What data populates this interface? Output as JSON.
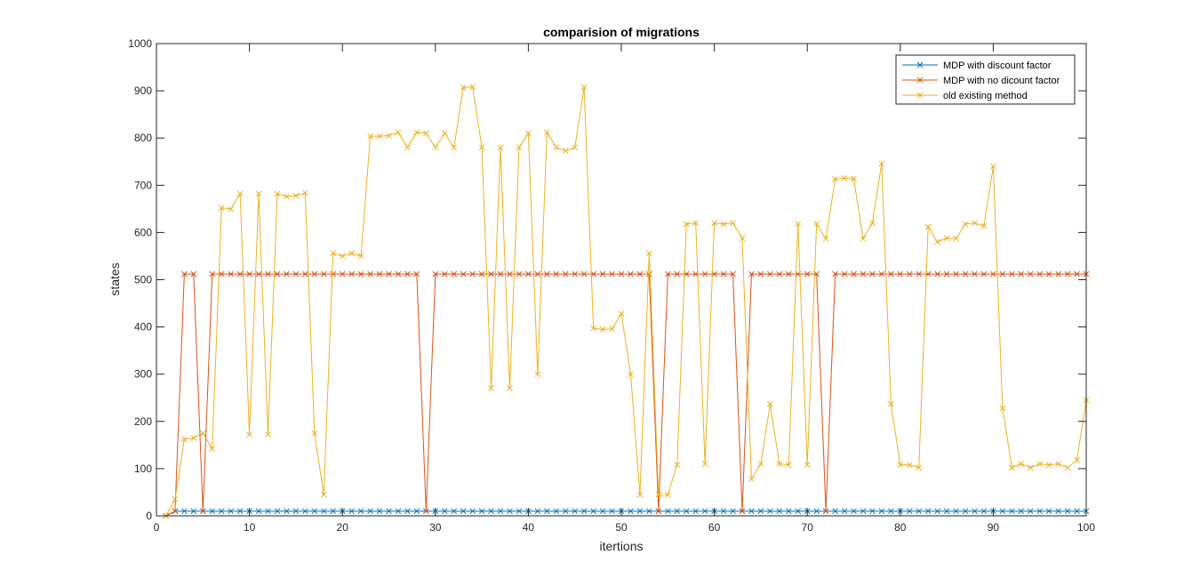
{
  "chart_data": {
    "type": "line",
    "title": "comparision of migrations",
    "xlabel": "itertions",
    "ylabel": "states",
    "xlim": [
      0,
      100
    ],
    "ylim": [
      0,
      1000
    ],
    "xticks": [
      0,
      10,
      20,
      30,
      40,
      50,
      60,
      70,
      80,
      90,
      100
    ],
    "yticks": [
      0,
      100,
      200,
      300,
      400,
      500,
      600,
      700,
      800,
      900,
      1000
    ],
    "grid": false,
    "legend_position": "top-right",
    "marker": "x",
    "x": [
      1,
      2,
      3,
      4,
      5,
      6,
      7,
      8,
      9,
      10,
      11,
      12,
      13,
      14,
      15,
      16,
      17,
      18,
      19,
      20,
      21,
      22,
      23,
      24,
      25,
      26,
      27,
      28,
      29,
      30,
      31,
      32,
      33,
      34,
      35,
      36,
      37,
      38,
      39,
      40,
      41,
      42,
      43,
      44,
      45,
      46,
      47,
      48,
      49,
      50,
      51,
      52,
      53,
      54,
      55,
      56,
      57,
      58,
      59,
      60,
      61,
      62,
      63,
      64,
      65,
      66,
      67,
      68,
      69,
      70,
      71,
      72,
      73,
      74,
      75,
      76,
      77,
      78,
      79,
      80,
      81,
      82,
      83,
      84,
      85,
      86,
      87,
      88,
      89,
      90,
      91,
      92,
      93,
      94,
      95,
      96,
      97,
      98,
      99,
      100
    ],
    "series": [
      {
        "name": "MDP with discount factor",
        "color": "#0072BD",
        "values": [
          0,
          10,
          10,
          10,
          10,
          10,
          10,
          10,
          10,
          10,
          10,
          10,
          10,
          10,
          10,
          10,
          10,
          10,
          10,
          10,
          10,
          10,
          10,
          10,
          10,
          10,
          10,
          10,
          10,
          10,
          10,
          10,
          10,
          10,
          10,
          10,
          10,
          10,
          10,
          10,
          10,
          10,
          10,
          10,
          10,
          10,
          10,
          10,
          10,
          10,
          10,
          10,
          10,
          10,
          10,
          10,
          10,
          10,
          10,
          10,
          10,
          10,
          10,
          10,
          10,
          10,
          10,
          10,
          10,
          10,
          10,
          10,
          10,
          10,
          10,
          10,
          10,
          10,
          10,
          10,
          10,
          10,
          10,
          10,
          10,
          10,
          10,
          10,
          10,
          10,
          10,
          10,
          10,
          10,
          10,
          10,
          10,
          10,
          10,
          10
        ]
      },
      {
        "name": "MDP with no dicount factor",
        "color": "#D95319",
        "values": [
          0,
          10,
          512,
          512,
          10,
          512,
          512,
          512,
          512,
          512,
          512,
          512,
          512,
          512,
          512,
          512,
          512,
          512,
          512,
          512,
          512,
          512,
          512,
          512,
          512,
          512,
          512,
          512,
          10,
          512,
          512,
          512,
          512,
          512,
          512,
          512,
          512,
          512,
          512,
          512,
          512,
          512,
          512,
          512,
          512,
          512,
          512,
          512,
          512,
          512,
          512,
          512,
          512,
          10,
          512,
          512,
          512,
          512,
          512,
          512,
          512,
          512,
          10,
          512,
          512,
          512,
          512,
          512,
          512,
          512,
          512,
          10,
          512,
          512,
          512,
          512,
          512,
          512,
          512,
          512,
          512,
          512,
          512,
          512,
          512,
          512,
          512,
          512,
          512,
          512,
          512,
          512,
          512,
          512,
          512,
          512,
          512,
          512,
          512,
          512
        ]
      },
      {
        "name": "old existing method",
        "color": "#EDB120",
        "values": [
          0,
          35,
          162,
          165,
          175,
          142,
          652,
          650,
          682,
          172,
          682,
          172,
          682,
          676,
          678,
          684,
          175,
          45,
          556,
          550,
          556,
          550,
          804,
          804,
          805,
          812,
          780,
          812,
          810,
          780,
          810,
          780,
          907,
          908,
          780,
          270,
          780,
          270,
          780,
          810,
          300,
          812,
          780,
          773,
          780,
          907,
          397,
          395,
          396,
          428,
          300,
          45,
          556,
          45,
          45,
          108,
          618,
          620,
          110,
          620,
          618,
          620,
          588,
          78,
          110,
          237,
          110,
          108,
          618,
          108,
          618,
          587,
          713,
          715,
          714,
          587,
          620,
          746,
          237,
          108,
          108,
          102,
          612,
          580,
          588,
          587,
          618,
          620,
          614,
          740,
          228,
          102,
          110,
          102,
          110,
          108,
          110,
          102,
          118,
          245
        ]
      }
    ]
  }
}
